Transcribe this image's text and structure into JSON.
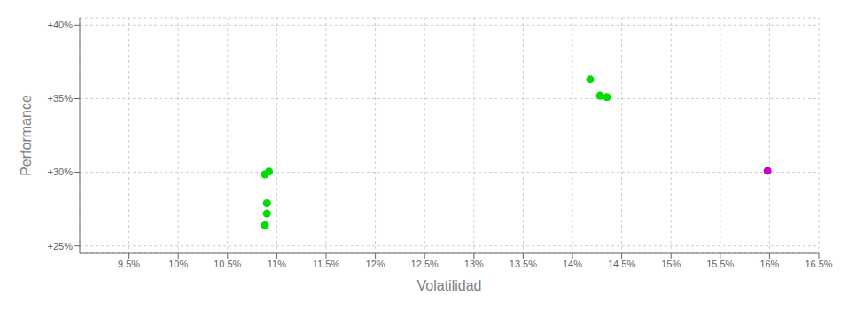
{
  "chart_data": {
    "type": "scatter",
    "xlabel": "Volatilidad",
    "ylabel": "Performance",
    "xlim": [
      0.09,
      0.165
    ],
    "ylim": [
      0.245,
      0.405
    ],
    "xticks": [
      {
        "value": 0.095,
        "label": "9.5%"
      },
      {
        "value": 0.1,
        "label": "10%"
      },
      {
        "value": 0.105,
        "label": "10.5%"
      },
      {
        "value": 0.11,
        "label": "11%"
      },
      {
        "value": 0.115,
        "label": "11.5%"
      },
      {
        "value": 0.12,
        "label": "12%"
      },
      {
        "value": 0.125,
        "label": "12.5%"
      },
      {
        "value": 0.13,
        "label": "13%"
      },
      {
        "value": 0.135,
        "label": "13.5%"
      },
      {
        "value": 0.14,
        "label": "14%"
      },
      {
        "value": 0.145,
        "label": "14.5%"
      },
      {
        "value": 0.15,
        "label": "15%"
      },
      {
        "value": 0.155,
        "label": "15.5%"
      },
      {
        "value": 0.16,
        "label": "16%"
      },
      {
        "value": 0.165,
        "label": "16.5%"
      }
    ],
    "yticks": [
      {
        "value": 0.25,
        "label": "+25%"
      },
      {
        "value": 0.3,
        "label": "+30%"
      },
      {
        "value": 0.35,
        "label": "+35%"
      },
      {
        "value": 0.4,
        "label": "+40%"
      }
    ],
    "grid": true,
    "series": [
      {
        "color": "#00dd00",
        "x": [
          0.1092,
          0.1088,
          0.109,
          0.109,
          0.1088,
          0.1418,
          0.1428,
          0.1435
        ],
        "values": [
          0.3005,
          0.2985,
          0.279,
          0.272,
          0.264,
          0.363,
          0.352,
          0.351
        ]
      },
      {
        "color": "#cc00cc",
        "x": [
          0.1598
        ],
        "values": [
          0.301
        ]
      }
    ]
  }
}
